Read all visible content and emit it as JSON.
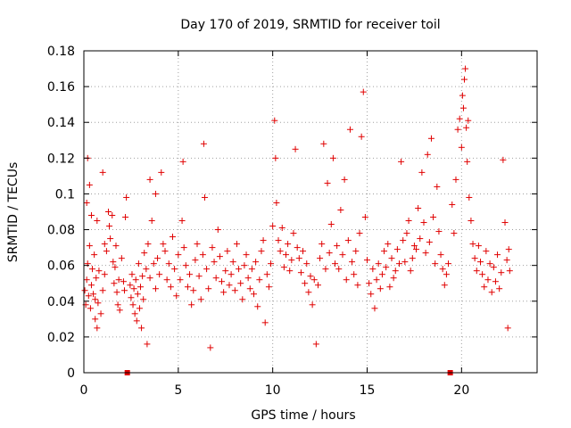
{
  "chart_data": {
    "type": "scatter",
    "title": "Day 170 of 2019, SRMTID for receiver toil",
    "xlabel": "GPS time / hours",
    "ylabel": "SRMTID / TECUs",
    "xlim": [
      0,
      24
    ],
    "ylim": [
      0,
      0.18
    ],
    "x_ticks": [
      0,
      5,
      10,
      15,
      20
    ],
    "y_ticks": [
      0,
      0.02,
      0.04,
      0.06,
      0.08,
      0.1,
      0.12,
      0.14,
      0.16,
      0.18
    ],
    "x_tick_labels": [
      "0",
      "5",
      "10",
      "15",
      "20"
    ],
    "y_tick_labels": [
      "0",
      "0.02",
      "0.04",
      "0.06",
      "0.08",
      "0.1",
      "0.12",
      "0.14",
      "0.16",
      "0.18"
    ],
    "grid": true,
    "marker": "plus",
    "color": "#e00000",
    "gap_markers": [
      {
        "x": 2.3,
        "y": 0
      },
      {
        "x": 19.4,
        "y": 0
      }
    ],
    "series": [
      {
        "values_xy": [
          [
            0.05,
            0.046
          ],
          [
            0.1,
            0.038
          ],
          [
            0.15,
            0.052
          ],
          [
            0.2,
            0.061
          ],
          [
            0.25,
            0.043
          ],
          [
            0.3,
            0.071
          ],
          [
            0.35,
            0.036
          ],
          [
            0.4,
            0.049
          ],
          [
            0.45,
            0.058
          ],
          [
            0.5,
            0.044
          ],
          [
            0.55,
            0.066
          ],
          [
            0.6,
            0.041
          ],
          [
            0.65,
            0.053
          ],
          [
            0.7,
            0.085
          ],
          [
            0.75,
            0.039
          ],
          [
            0.8,
            0.057
          ],
          [
            0.2,
            0.12
          ],
          [
            0.3,
            0.105
          ],
          [
            0.15,
            0.095
          ],
          [
            0.4,
            0.088
          ],
          [
            0.6,
            0.03
          ],
          [
            0.7,
            0.025
          ],
          [
            0.9,
            0.033
          ],
          [
            1.0,
            0.046
          ],
          [
            1.1,
            0.055
          ],
          [
            1.2,
            0.068
          ],
          [
            1.3,
            0.09
          ],
          [
            1.35,
            0.082
          ],
          [
            1.4,
            0.075
          ],
          [
            1.5,
            0.088
          ],
          [
            1.55,
            0.062
          ],
          [
            1.6,
            0.05
          ],
          [
            1.65,
            0.059
          ],
          [
            1.7,
            0.071
          ],
          [
            1.75,
            0.045
          ],
          [
            1.8,
            0.038
          ],
          [
            1.85,
            0.052
          ],
          [
            1.9,
            0.035
          ],
          [
            1.0,
            0.112
          ],
          [
            1.1,
            0.072
          ],
          [
            2.0,
            0.064
          ],
          [
            2.1,
            0.051
          ],
          [
            2.15,
            0.046
          ],
          [
            2.2,
            0.087
          ],
          [
            2.25,
            0.098
          ],
          [
            2.45,
            0.049
          ],
          [
            2.5,
            0.042
          ],
          [
            2.55,
            0.055
          ],
          [
            2.6,
            0.038
          ],
          [
            2.65,
            0.047
          ],
          [
            2.7,
            0.033
          ],
          [
            2.75,
            0.052
          ],
          [
            2.8,
            0.029
          ],
          [
            2.85,
            0.044
          ],
          [
            2.9,
            0.061
          ],
          [
            2.95,
            0.036
          ],
          [
            3.0,
            0.048
          ],
          [
            3.05,
            0.025
          ],
          [
            3.1,
            0.054
          ],
          [
            3.15,
            0.041
          ],
          [
            3.2,
            0.067
          ],
          [
            3.3,
            0.058
          ],
          [
            3.4,
            0.072
          ],
          [
            3.5,
            0.053
          ],
          [
            3.6,
            0.085
          ],
          [
            3.7,
            0.061
          ],
          [
            3.8,
            0.047
          ],
          [
            3.9,
            0.064
          ],
          [
            4.0,
            0.055
          ],
          [
            3.35,
            0.016
          ],
          [
            3.5,
            0.108
          ],
          [
            3.8,
            0.1
          ],
          [
            4.1,
            0.112
          ],
          [
            4.2,
            0.072
          ],
          [
            4.3,
            0.068
          ],
          [
            4.4,
            0.052
          ],
          [
            4.5,
            0.061
          ],
          [
            4.6,
            0.048
          ],
          [
            4.7,
            0.076
          ],
          [
            4.8,
            0.058
          ],
          [
            4.9,
            0.043
          ],
          [
            5.0,
            0.066
          ],
          [
            5.1,
            0.052
          ],
          [
            5.2,
            0.085
          ],
          [
            5.3,
            0.07
          ],
          [
            5.25,
            0.118
          ],
          [
            5.4,
            0.06
          ],
          [
            5.5,
            0.048
          ],
          [
            5.6,
            0.055
          ],
          [
            5.7,
            0.038
          ],
          [
            5.8,
            0.046
          ],
          [
            5.9,
            0.063
          ],
          [
            6.0,
            0.072
          ],
          [
            6.1,
            0.054
          ],
          [
            6.2,
            0.041
          ],
          [
            6.3,
            0.066
          ],
          [
            6.35,
            0.128
          ],
          [
            6.4,
            0.098
          ],
          [
            6.5,
            0.058
          ],
          [
            6.6,
            0.047
          ],
          [
            6.7,
            0.014
          ],
          [
            6.8,
            0.07
          ],
          [
            6.9,
            0.062
          ],
          [
            7.0,
            0.053
          ],
          [
            7.1,
            0.08
          ],
          [
            7.2,
            0.065
          ],
          [
            7.3,
            0.051
          ],
          [
            7.4,
            0.045
          ],
          [
            7.5,
            0.057
          ],
          [
            7.6,
            0.068
          ],
          [
            7.7,
            0.049
          ],
          [
            7.8,
            0.055
          ],
          [
            7.9,
            0.062
          ],
          [
            8.0,
            0.046
          ],
          [
            8.1,
            0.072
          ],
          [
            8.2,
            0.058
          ],
          [
            8.3,
            0.05
          ],
          [
            8.4,
            0.041
          ],
          [
            8.5,
            0.06
          ],
          [
            8.6,
            0.066
          ],
          [
            8.7,
            0.053
          ],
          [
            8.8,
            0.047
          ],
          [
            8.9,
            0.058
          ],
          [
            9.0,
            0.044
          ],
          [
            9.1,
            0.062
          ],
          [
            9.2,
            0.037
          ],
          [
            9.3,
            0.052
          ],
          [
            9.4,
            0.068
          ],
          [
            9.5,
            0.074
          ],
          [
            9.6,
            0.028
          ],
          [
            9.7,
            0.055
          ],
          [
            9.8,
            0.048
          ],
          [
            9.9,
            0.061
          ],
          [
            10.0,
            0.082
          ],
          [
            10.1,
            0.141
          ],
          [
            10.15,
            0.12
          ],
          [
            10.2,
            0.095
          ],
          [
            10.3,
            0.074
          ],
          [
            10.4,
            0.068
          ],
          [
            10.5,
            0.081
          ],
          [
            10.6,
            0.059
          ],
          [
            10.7,
            0.066
          ],
          [
            10.8,
            0.072
          ],
          [
            10.9,
            0.057
          ],
          [
            11.0,
            0.063
          ],
          [
            11.1,
            0.078
          ],
          [
            11.2,
            0.125
          ],
          [
            11.3,
            0.07
          ],
          [
            11.4,
            0.064
          ],
          [
            11.5,
            0.056
          ],
          [
            11.6,
            0.068
          ],
          [
            11.7,
            0.05
          ],
          [
            11.8,
            0.061
          ],
          [
            11.9,
            0.045
          ],
          [
            12.0,
            0.054
          ],
          [
            12.1,
            0.038
          ],
          [
            12.2,
            0.052
          ],
          [
            12.3,
            0.016
          ],
          [
            12.4,
            0.049
          ],
          [
            12.5,
            0.064
          ],
          [
            12.6,
            0.072
          ],
          [
            12.7,
            0.128
          ],
          [
            12.8,
            0.058
          ],
          [
            12.9,
            0.106
          ],
          [
            13.0,
            0.067
          ],
          [
            13.1,
            0.083
          ],
          [
            13.2,
            0.12
          ],
          [
            13.3,
            0.061
          ],
          [
            13.4,
            0.071
          ],
          [
            13.5,
            0.058
          ],
          [
            13.6,
            0.091
          ],
          [
            13.7,
            0.066
          ],
          [
            13.8,
            0.108
          ],
          [
            13.9,
            0.052
          ],
          [
            14.0,
            0.074
          ],
          [
            14.1,
            0.136
          ],
          [
            14.2,
            0.062
          ],
          [
            14.3,
            0.055
          ],
          [
            14.4,
            0.068
          ],
          [
            14.5,
            0.049
          ],
          [
            14.6,
            0.078
          ],
          [
            14.7,
            0.132
          ],
          [
            14.8,
            0.157
          ],
          [
            14.9,
            0.087
          ],
          [
            15.0,
            0.063
          ],
          [
            15.1,
            0.05
          ],
          [
            15.2,
            0.044
          ],
          [
            15.3,
            0.058
          ],
          [
            15.4,
            0.036
          ],
          [
            15.5,
            0.052
          ],
          [
            15.6,
            0.061
          ],
          [
            15.7,
            0.047
          ],
          [
            15.8,
            0.055
          ],
          [
            15.9,
            0.068
          ],
          [
            16.0,
            0.059
          ],
          [
            16.1,
            0.072
          ],
          [
            16.2,
            0.048
          ],
          [
            16.3,
            0.064
          ],
          [
            16.4,
            0.053
          ],
          [
            16.5,
            0.057
          ],
          [
            16.6,
            0.069
          ],
          [
            16.7,
            0.061
          ],
          [
            16.8,
            0.118
          ],
          [
            16.9,
            0.074
          ],
          [
            17.0,
            0.062
          ],
          [
            17.1,
            0.078
          ],
          [
            17.2,
            0.085
          ],
          [
            17.3,
            0.057
          ],
          [
            17.4,
            0.064
          ],
          [
            17.5,
            0.071
          ],
          [
            17.6,
            0.069
          ],
          [
            17.7,
            0.092
          ],
          [
            17.8,
            0.075
          ],
          [
            17.9,
            0.112
          ],
          [
            18.0,
            0.084
          ],
          [
            18.1,
            0.067
          ],
          [
            18.2,
            0.122
          ],
          [
            18.3,
            0.073
          ],
          [
            18.4,
            0.131
          ],
          [
            18.5,
            0.087
          ],
          [
            18.6,
            0.061
          ],
          [
            18.7,
            0.104
          ],
          [
            18.8,
            0.079
          ],
          [
            18.9,
            0.066
          ],
          [
            19.0,
            0.058
          ],
          [
            19.1,
            0.049
          ],
          [
            19.2,
            0.055
          ],
          [
            19.3,
            0.061
          ],
          [
            19.5,
            0.094
          ],
          [
            19.6,
            0.078
          ],
          [
            19.7,
            0.108
          ],
          [
            19.8,
            0.136
          ],
          [
            19.9,
            0.142
          ],
          [
            20.0,
            0.126
          ],
          [
            20.05,
            0.155
          ],
          [
            20.1,
            0.148
          ],
          [
            20.15,
            0.164
          ],
          [
            20.2,
            0.17
          ],
          [
            20.25,
            0.137
          ],
          [
            20.3,
            0.118
          ],
          [
            20.35,
            0.141
          ],
          [
            20.4,
            0.098
          ],
          [
            20.5,
            0.085
          ],
          [
            20.6,
            0.072
          ],
          [
            20.7,
            0.064
          ],
          [
            20.8,
            0.057
          ],
          [
            20.9,
            0.071
          ],
          [
            21.0,
            0.062
          ],
          [
            21.1,
            0.055
          ],
          [
            21.2,
            0.048
          ],
          [
            21.3,
            0.068
          ],
          [
            21.4,
            0.052
          ],
          [
            21.5,
            0.061
          ],
          [
            21.6,
            0.045
          ],
          [
            21.7,
            0.059
          ],
          [
            21.8,
            0.051
          ],
          [
            21.9,
            0.066
          ],
          [
            22.0,
            0.047
          ],
          [
            22.1,
            0.056
          ],
          [
            22.2,
            0.119
          ],
          [
            22.3,
            0.084
          ],
          [
            22.4,
            0.063
          ],
          [
            22.45,
            0.025
          ],
          [
            22.5,
            0.069
          ],
          [
            22.55,
            0.057
          ]
        ]
      }
    ]
  }
}
